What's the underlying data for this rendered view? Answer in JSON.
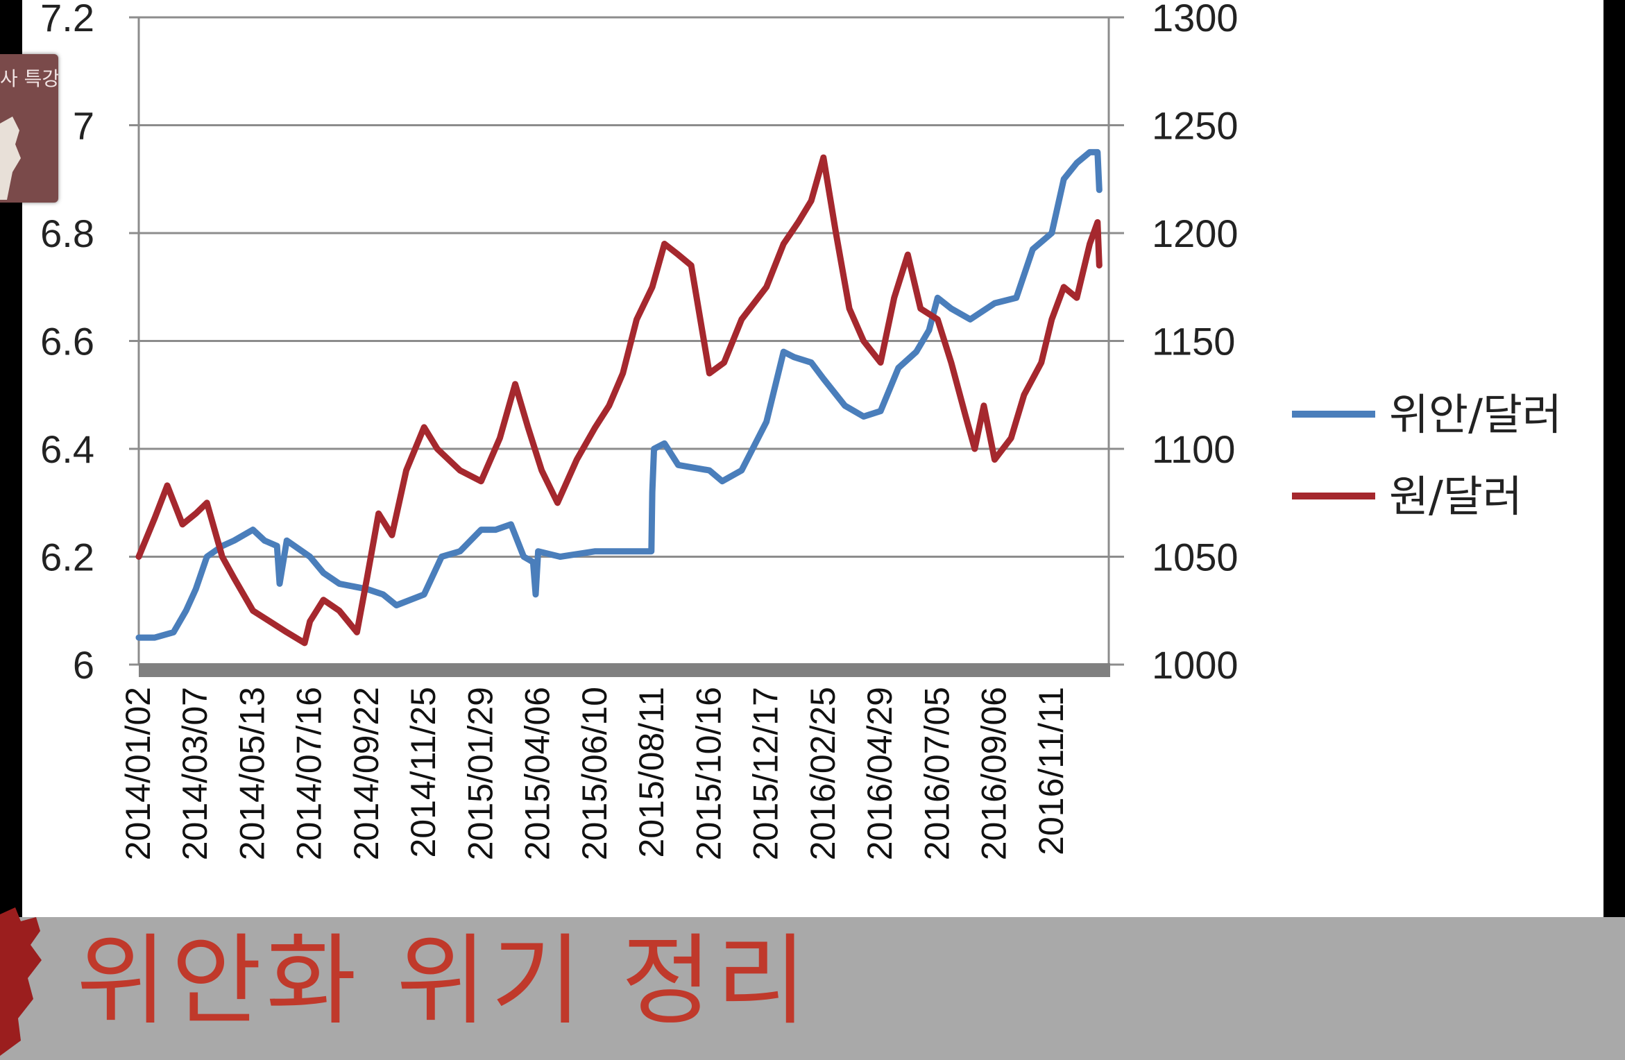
{
  "caption": {
    "title": "위안화 위기 정리"
  },
  "badge": {
    "text": "사 특강"
  },
  "colors": {
    "cny": "#4a7ebb",
    "krw": "#a5282e",
    "caption": "#c0392b",
    "caption_bg": "#a9a9a9",
    "grid": "#8c8c8c"
  },
  "chart_data": {
    "type": "line",
    "title": "",
    "legend_position": "right",
    "grid": true,
    "x": [
      "2014/01/02",
      "2014/03/07",
      "2014/05/13",
      "2014/07/16",
      "2014/09/22",
      "2014/11/25",
      "2015/01/29",
      "2015/04/06",
      "2015/06/10",
      "2015/08/11",
      "2015/10/16",
      "2015/12/17",
      "2016/02/25",
      "2016/04/29",
      "2016/07/05",
      "2016/09/06",
      "2016/11/11"
    ],
    "y_left": {
      "ylim": [
        6,
        7.2
      ],
      "ticks": [
        "6",
        "6.2",
        "6.4",
        "6.6",
        "6.8",
        "7",
        "7.2"
      ]
    },
    "y_right": {
      "ylim": [
        1000,
        1300
      ],
      "ticks": [
        "1000",
        "1050",
        "1100",
        "1150",
        "1200",
        "1250",
        "1300"
      ]
    },
    "series": [
      {
        "name": "위안/달러",
        "axis": "left",
        "color": "#4a7ebb",
        "points": [
          [
            "2014/01/02",
            6.05
          ],
          [
            "2014/01/20",
            6.05
          ],
          [
            "2014/02/10",
            6.06
          ],
          [
            "2014/02/24",
            6.1
          ],
          [
            "2014/03/07",
            6.14
          ],
          [
            "2014/03/20",
            6.2
          ],
          [
            "2014/04/07",
            6.22
          ],
          [
            "2014/04/21",
            6.23
          ],
          [
            "2014/05/13",
            6.25
          ],
          [
            "2014/05/26",
            6.23
          ],
          [
            "2014/06/09",
            6.22
          ],
          [
            "2014/06/12",
            6.15
          ],
          [
            "2014/06/20",
            6.23
          ],
          [
            "2014/07/16",
            6.2
          ],
          [
            "2014/08/01",
            6.17
          ],
          [
            "2014/08/20",
            6.15
          ],
          [
            "2014/09/22",
            6.14
          ],
          [
            "2014/10/10",
            6.13
          ],
          [
            "2014/10/25",
            6.11
          ],
          [
            "2014/11/25",
            6.13
          ],
          [
            "2014/12/15",
            6.2
          ],
          [
            "2015/01/05",
            6.21
          ],
          [
            "2015/01/29",
            6.25
          ],
          [
            "2015/02/15",
            6.25
          ],
          [
            "2015/03/05",
            6.26
          ],
          [
            "2015/03/20",
            6.2
          ],
          [
            "2015/03/31",
            6.19
          ],
          [
            "2015/04/03",
            6.13
          ],
          [
            "2015/04/06",
            6.21
          ],
          [
            "2015/05/01",
            6.2
          ],
          [
            "2015/06/10",
            6.21
          ],
          [
            "2015/07/15",
            6.21
          ],
          [
            "2015/08/10",
            6.21
          ],
          [
            "2015/08/11",
            6.32
          ],
          [
            "2015/08/13",
            6.4
          ],
          [
            "2015/08/25",
            6.41
          ],
          [
            "2015/09/10",
            6.37
          ],
          [
            "2015/10/16",
            6.36
          ],
          [
            "2015/10/30",
            6.34
          ],
          [
            "2015/11/20",
            6.36
          ],
          [
            "2015/12/17",
            6.45
          ],
          [
            "2016/01/07",
            6.58
          ],
          [
            "2016/01/20",
            6.57
          ],
          [
            "2016/02/10",
            6.56
          ],
          [
            "2016/02/25",
            6.53
          ],
          [
            "2016/03/20",
            6.48
          ],
          [
            "2016/04/10",
            6.46
          ],
          [
            "2016/04/29",
            6.47
          ],
          [
            "2016/05/20",
            6.55
          ],
          [
            "2016/06/10",
            6.58
          ],
          [
            "2016/06/25",
            6.62
          ],
          [
            "2016/07/05",
            6.68
          ],
          [
            "2016/07/20",
            6.66
          ],
          [
            "2016/08/10",
            6.64
          ],
          [
            "2016/09/06",
            6.67
          ],
          [
            "2016/10/01",
            6.68
          ],
          [
            "2016/10/20",
            6.77
          ],
          [
            "2016/11/11",
            6.8
          ],
          [
            "2016/11/25",
            6.9
          ],
          [
            "2016/12/10",
            6.93
          ],
          [
            "2016/12/25",
            6.95
          ],
          [
            "2017/01/03",
            6.95
          ],
          [
            "2017/01/05",
            6.88
          ]
        ]
      },
      {
        "name": "원/달러",
        "axis": "right",
        "color": "#a5282e",
        "points": [
          [
            "2014/01/02",
            1050
          ],
          [
            "2014/01/20",
            1068
          ],
          [
            "2014/02/03",
            1083
          ],
          [
            "2014/02/20",
            1065
          ],
          [
            "2014/03/07",
            1070
          ],
          [
            "2014/03/20",
            1075
          ],
          [
            "2014/04/07",
            1050
          ],
          [
            "2014/04/21",
            1040
          ],
          [
            "2014/05/13",
            1025
          ],
          [
            "2014/06/01",
            1020
          ],
          [
            "2014/06/20",
            1015
          ],
          [
            "2014/07/10",
            1010
          ],
          [
            "2014/07/16",
            1020
          ],
          [
            "2014/08/01",
            1030
          ],
          [
            "2014/08/20",
            1025
          ],
          [
            "2014/09/10",
            1015
          ],
          [
            "2014/09/22",
            1040
          ],
          [
            "2014/10/05",
            1070
          ],
          [
            "2014/10/20",
            1060
          ],
          [
            "2014/11/05",
            1090
          ],
          [
            "2014/11/25",
            1110
          ],
          [
            "2014/12/10",
            1100
          ],
          [
            "2015/01/05",
            1090
          ],
          [
            "2015/01/29",
            1085
          ],
          [
            "2015/02/20",
            1105
          ],
          [
            "2015/03/10",
            1130
          ],
          [
            "2015/03/25",
            1110
          ],
          [
            "2015/04/10",
            1090
          ],
          [
            "2015/04/28",
            1075
          ],
          [
            "2015/05/20",
            1095
          ],
          [
            "2015/06/10",
            1110
          ],
          [
            "2015/06/25",
            1120
          ],
          [
            "2015/07/10",
            1135
          ],
          [
            "2015/07/25",
            1160
          ],
          [
            "2015/08/11",
            1175
          ],
          [
            "2015/08/25",
            1195
          ],
          [
            "2015/09/10",
            1190
          ],
          [
            "2015/09/25",
            1185
          ],
          [
            "2015/10/16",
            1135
          ],
          [
            "2015/11/01",
            1140
          ],
          [
            "2015/11/20",
            1160
          ],
          [
            "2015/12/17",
            1175
          ],
          [
            "2016/01/07",
            1195
          ],
          [
            "2016/01/25",
            1205
          ],
          [
            "2016/02/10",
            1215
          ],
          [
            "2016/02/25",
            1235
          ],
          [
            "2016/03/10",
            1200
          ],
          [
            "2016/03/25",
            1165
          ],
          [
            "2016/04/10",
            1150
          ],
          [
            "2016/04/29",
            1140
          ],
          [
            "2016/05/15",
            1170
          ],
          [
            "2016/05/31",
            1190
          ],
          [
            "2016/06/15",
            1165
          ],
          [
            "2016/07/05",
            1160
          ],
          [
            "2016/07/20",
            1140
          ],
          [
            "2016/08/05",
            1115
          ],
          [
            "2016/08/15",
            1100
          ],
          [
            "2016/08/25",
            1120
          ],
          [
            "2016/09/06",
            1095
          ],
          [
            "2016/09/25",
            1105
          ],
          [
            "2016/10/10",
            1125
          ],
          [
            "2016/10/30",
            1140
          ],
          [
            "2016/11/11",
            1160
          ],
          [
            "2016/11/25",
            1175
          ],
          [
            "2016/12/10",
            1170
          ],
          [
            "2016/12/25",
            1195
          ],
          [
            "2017/01/03",
            1205
          ],
          [
            "2017/01/05",
            1185
          ]
        ]
      }
    ]
  }
}
